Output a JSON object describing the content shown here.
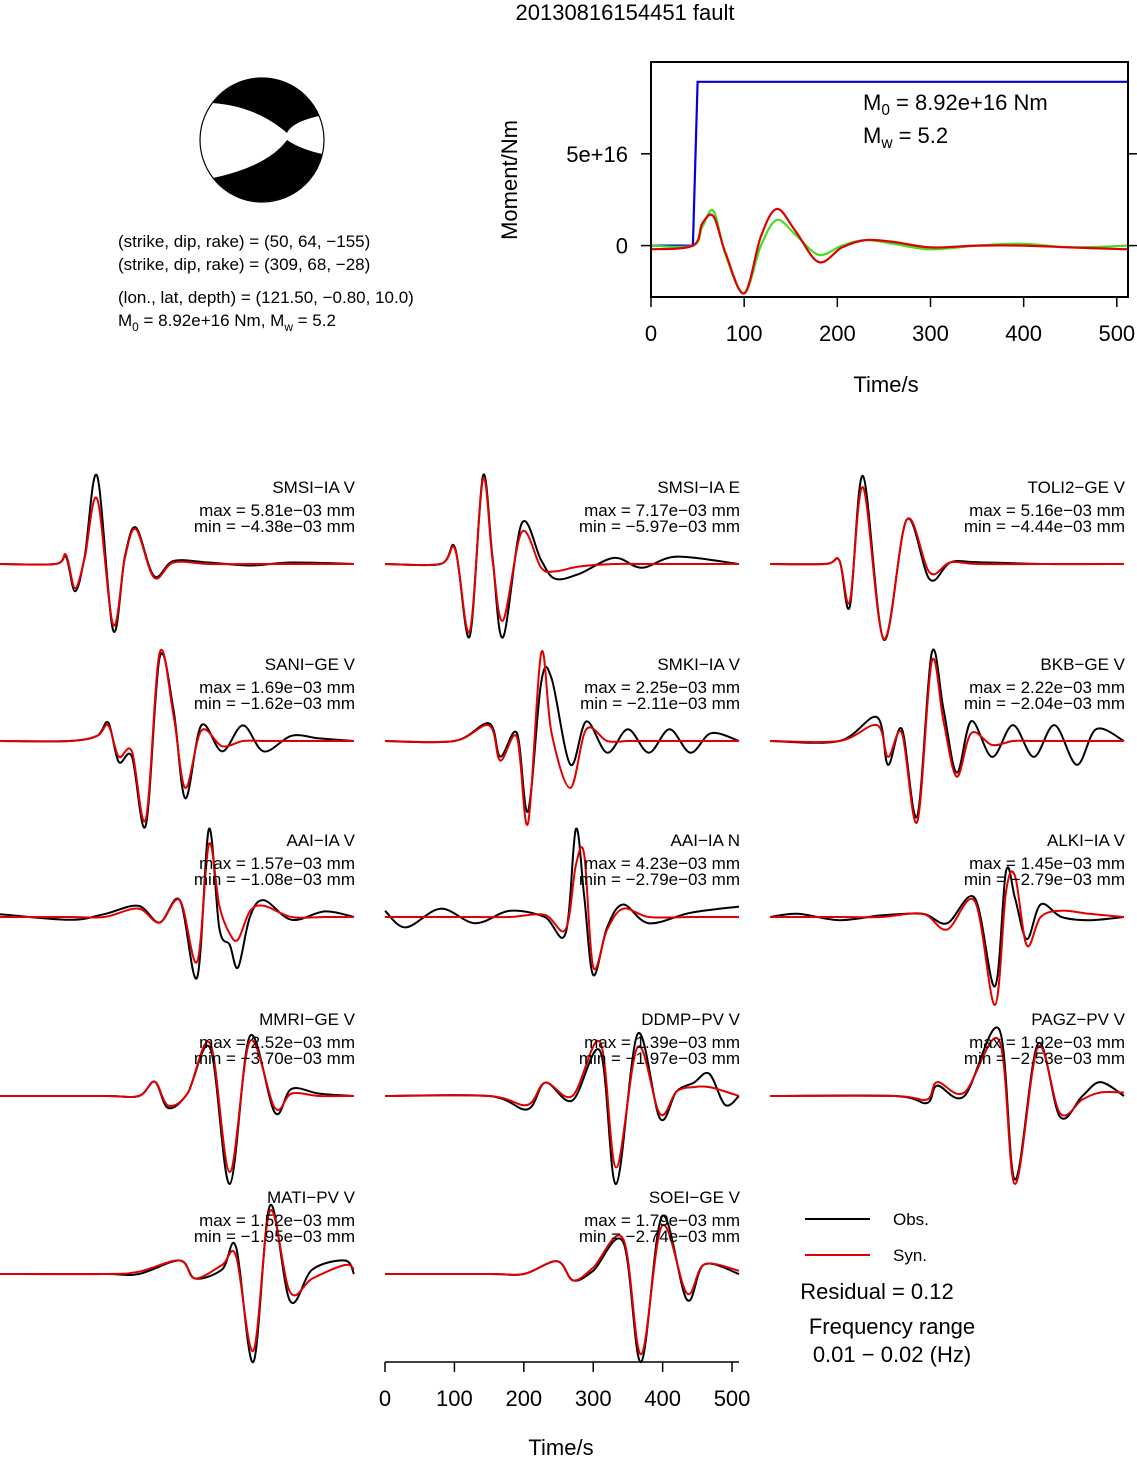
{
  "title": "20130816154451 fault",
  "focal": {
    "lines": [
      "(strike, dip, rake) = (50, 64, −155)",
      "(strike, dip, rake) = (309, 68, −28)",
      "(lon., lat, depth) = (121.50, −0.80, 10.0)"
    ],
    "moment_parts": [
      "M",
      "0",
      " = 8.92e+16 Nm, M",
      "w",
      " = 5.2"
    ]
  },
  "footnotes": [
    "Residual = 0.12",
    "Frequency range",
    "0.01 − 0.02 (Hz)"
  ],
  "chart_data": [
    {
      "type": "line",
      "ylabel": "Moment/Nm",
      "xlabel": "Time/s",
      "annotations": [
        [
          "M",
          "0",
          " = 8.92e+16 Nm"
        ],
        [
          "M",
          "w",
          " = 5.2"
        ]
      ],
      "xlim": [
        0,
        512
      ],
      "xticks": [
        0,
        100,
        200,
        300,
        400,
        500
      ],
      "ylim": [
        -2.8e+16,
        1e+17
      ],
      "yticks": [
        0,
        {
          "value": 5e+16,
          "label": "5e+16"
        }
      ],
      "series": [
        {
          "color": "#0000dd",
          "x": [
            0,
            45,
            50,
            512
          ],
          "values": [
            0,
            0,
            8.92e+16,
            8.92e+16
          ]
        },
        {
          "color": "#44dd22",
          "x": [
            0,
            45,
            55,
            67,
            80,
            100,
            118,
            135,
            155,
            180,
            205,
            230,
            260,
            300,
            350,
            400,
            450,
            512
          ],
          "values": [
            0,
            0,
            1e+16,
            1.9e+16,
            -5000000000000000.0,
            -2.6e+16,
            0,
            1.4e+16,
            6000000000000000.0,
            -5000000000000000.0,
            0,
            3000000000000000.0,
            1000000000000000.0,
            -2000000000000000.0,
            0,
            1000000000000000.0,
            -1000000000000000.0,
            0
          ]
        },
        {
          "color": "#dd0000",
          "x": [
            0,
            45,
            55,
            67,
            80,
            100,
            118,
            135,
            155,
            180,
            205,
            230,
            260,
            300,
            350,
            400,
            450,
            512
          ],
          "values": [
            -2000000000000000.0,
            0,
            1.2e+16,
            1.6e+16,
            -4000000000000000.0,
            -2.6e+16,
            5000000000000000.0,
            2e+16,
            8000000000000000.0,
            -9000000000000000.0,
            -1000000000000000.0,
            3000000000000000.0,
            2000000000000000.0,
            -1000000000000000.0,
            0,
            0,
            -1000000000000000.0,
            -2000000000000000.0
          ]
        }
      ]
    },
    {
      "type": "wave",
      "title": "SMSI−IA V",
      "annotations": [
        "max = 5.81e−03 mm",
        "min = −4.38e−03 mm"
      ],
      "x": [
        0,
        80,
        95,
        108,
        122,
        140,
        163,
        180,
        196,
        222,
        250,
        300,
        360,
        420,
        510
      ],
      "series": [
        {
          "name": "Obs.",
          "color": "#000000",
          "values": [
            0,
            0,
            0.0005,
            -0.0018,
            0.0005,
            0.00581,
            -0.00438,
            0.0005,
            0.0024,
            -0.0008,
            0.0002,
            0.0001,
            -0.0001,
            0.0001,
            0
          ]
        },
        {
          "name": "Syn.",
          "color": "#e00000",
          "values": [
            0,
            0,
            0.0006,
            -0.0016,
            0.0004,
            0.0043,
            -0.004,
            0.0004,
            0.0023,
            -0.0009,
            0.0001,
            0,
            0,
            0,
            0
          ]
        }
      ]
    },
    {
      "type": "wave",
      "title": "SMSI−IA E",
      "annotations": [
        "max = 7.17e−03 mm",
        "min = −5.97e−03 mm"
      ],
      "x": [
        0,
        80,
        101,
        122,
        141,
        155,
        170,
        197,
        225,
        245,
        280,
        330,
        370,
        420,
        510
      ],
      "series": [
        {
          "name": "Obs.",
          "color": "#000000",
          "values": [
            0,
            0,
            0.0013,
            -0.0059,
            0.00717,
            0.0005,
            -0.00597,
            0.0033,
            0.0003,
            -0.0012,
            -0.0008,
            0.0005,
            -0.0003,
            0.0006,
            0
          ]
        },
        {
          "name": "Syn.",
          "color": "#e00000",
          "values": [
            0,
            0,
            0.0012,
            -0.0055,
            0.0069,
            0.0003,
            -0.0046,
            0.0026,
            -0.0003,
            -0.0006,
            -0.0002,
            0,
            0,
            0,
            0
          ]
        }
      ]
    },
    {
      "type": "wave",
      "title": "TOLI2−GE V",
      "annotations": [
        "max = 5.16e−03 mm",
        "min = −4.44e−03 mm"
      ],
      "x": [
        0,
        80,
        100,
        115,
        134,
        164,
        197,
        230,
        260,
        300,
        400,
        510
      ],
      "series": [
        {
          "name": "Obs.",
          "color": "#000000",
          "values": [
            0,
            0,
            0.0002,
            -0.0025,
            0.00516,
            -0.00444,
            0.0026,
            -0.0009,
            0.0001,
            0.0001,
            0,
            0
          ]
        },
        {
          "name": "Syn.",
          "color": "#e00000",
          "values": [
            0,
            0,
            0.0002,
            -0.0022,
            0.0045,
            -0.0044,
            0.0026,
            -0.0005,
            0.0001,
            0,
            0,
            0
          ]
        }
      ]
    },
    {
      "type": "wave",
      "title": "SANI−GE V",
      "annotations": [
        "max = 1.69e−03 mm",
        "min = −1.62e−03 mm"
      ],
      "x": [
        0,
        100,
        140,
        156,
        171,
        190,
        210,
        230,
        250,
        267,
        290,
        320,
        350,
        380,
        420,
        460,
        510
      ],
      "series": [
        {
          "name": "Obs.",
          "color": "#000000",
          "values": [
            0,
            0,
            0.0001,
            0.00035,
            -0.0004,
            -0.0003,
            -0.00162,
            0.0016,
            0.0006,
            -0.0011,
            0.0003,
            -0.0002,
            0.0003,
            -0.0002,
            0.0001,
            5e-05,
            0
          ]
        },
        {
          "name": "Syn.",
          "color": "#e00000",
          "values": [
            0,
            0,
            0.0001,
            0.0003,
            -0.0003,
            -0.0002,
            -0.0015,
            0.00169,
            0.0005,
            -0.0009,
            0.0002,
            -0.0001,
            0,
            0,
            0,
            0,
            0
          ]
        }
      ]
    },
    {
      "type": "wave",
      "title": "SMKI−IA V",
      "annotations": [
        "max = 2.25e−03 mm",
        "min = −2.11e−03 mm"
      ],
      "x": [
        0,
        100,
        150,
        166,
        190,
        206,
        225,
        240,
        267,
        290,
        320,
        350,
        380,
        410,
        440,
        470,
        510
      ],
      "series": [
        {
          "name": "Obs.",
          "color": "#000000",
          "values": [
            0,
            0,
            0.00045,
            -0.0004,
            0.0002,
            -0.0018,
            0.0015,
            0.0016,
            -0.0006,
            0.0005,
            -0.0003,
            0.0003,
            -0.0003,
            0.0003,
            -0.0003,
            0.0002,
            0
          ]
        },
        {
          "name": "Syn.",
          "color": "#e00000",
          "values": [
            0,
            0,
            0.0004,
            -0.0005,
            0.0001,
            -0.00211,
            0.00225,
            0.0002,
            -0.0012,
            0.0003,
            0,
            0,
            0,
            0,
            0,
            0,
            0
          ]
        }
      ]
    },
    {
      "type": "wave",
      "title": "BKB−GE V",
      "annotations": [
        "max = 2.22e−03 mm",
        "min = −2.04e−03 mm"
      ],
      "x": [
        0,
        100,
        154,
        170,
        190,
        212,
        233,
        250,
        269,
        290,
        320,
        350,
        380,
        410,
        442,
        470,
        510
      ],
      "series": [
        {
          "name": "Obs.",
          "color": "#000000",
          "values": [
            0,
            0,
            0.0006,
            -0.0006,
            0.0003,
            -0.0019,
            0.00222,
            0.0008,
            -0.0008,
            0.0005,
            -0.0004,
            0.0004,
            -0.0004,
            0.0004,
            -0.0006,
            0.0003,
            0
          ]
        },
        {
          "name": "Syn.",
          "color": "#e00000",
          "values": [
            0,
            0,
            0.0004,
            -0.0004,
            0.0002,
            -0.00204,
            0.002,
            0.0005,
            -0.0009,
            0.0002,
            -0.0001,
            0,
            0,
            0,
            0,
            0,
            0
          ]
        }
      ]
    },
    {
      "type": "wave",
      "title": "AAI−IA V",
      "annotations": [
        "max = 1.57e−03 mm",
        "min = −1.08e−03 mm"
      ],
      "x": [
        0,
        100,
        150,
        199,
        230,
        259,
        284,
        301,
        316,
        331,
        343,
        360,
        380,
        420,
        468,
        510
      ],
      "series": [
        {
          "name": "Obs.",
          "color": "#000000",
          "values": [
            5e-05,
            -5e-05,
            5e-05,
            0.0002,
            -0.0001,
            0.0003,
            -0.00108,
            0.00157,
            -0.0002,
            -0.0005,
            -0.0009,
            0,
            0.0003,
            -5e-05,
            0.0001,
            0
          ]
        },
        {
          "name": "Syn.",
          "color": "#e00000",
          "values": [
            0,
            0,
            0,
            0.00015,
            -0.0001,
            0.0003,
            -0.0008,
            0.0013,
            0.0002,
            -0.0003,
            -0.0004,
            0.0001,
            0.0002,
            0,
            0,
            0
          ]
        }
      ]
    },
    {
      "type": "wave",
      "title": "AAI−IA N",
      "annotations": [
        "max = 4.23e−03 mm",
        "min = −2.79e−03 mm"
      ],
      "x": [
        0,
        30,
        80,
        130,
        180,
        230,
        260,
        275,
        287,
        300,
        320,
        343,
        380,
        440,
        510
      ],
      "series": [
        {
          "name": "Obs.",
          "color": "#000000",
          "values": [
            0.0003,
            -0.0005,
            0.0004,
            -0.0003,
            0.0003,
            0,
            -0.0008,
            0.00423,
            0.001,
            -0.00279,
            -0.0005,
            0.0006,
            -0.0003,
            0.0002,
            0.0005
          ]
        },
        {
          "name": "Syn.",
          "color": "#e00000",
          "values": [
            0,
            0,
            0,
            0,
            0,
            0.0001,
            -0.0006,
            0.0025,
            0.003,
            -0.0024,
            -0.0006,
            0.0004,
            0,
            0,
            0
          ]
        }
      ]
    },
    {
      "type": "wave",
      "title": "ALKI−IA V",
      "annotations": [
        "max = 1.45e−03 mm",
        "min = −2.79e−03 mm"
      ],
      "x": [
        0,
        40,
        100,
        160,
        220,
        255,
        295,
        324,
        340,
        353,
        370,
        390,
        420,
        460,
        510
      ],
      "series": [
        {
          "name": "Obs.",
          "color": "#000000",
          "values": [
            0,
            0.0001,
            -0.0001,
            5e-05,
            0.0001,
            -0.0002,
            0.0006,
            -0.0022,
            0.00145,
            0.0006,
            -0.0007,
            0.0004,
            0,
            -0.0001,
            0
          ]
        },
        {
          "name": "Syn.",
          "color": "#e00000",
          "values": [
            0,
            0,
            0,
            0,
            0.0001,
            -0.0004,
            0.0005,
            -0.00279,
            0.0008,
            0.0013,
            -0.0009,
            0,
            0.0002,
            0.0001,
            0
          ]
        }
      ]
    },
    {
      "type": "wave",
      "title": "MMRI−GE V",
      "annotations": [
        "max = 2.52e−03 mm",
        "min = −3.70e−03 mm"
      ],
      "x": [
        0,
        150,
        200,
        223,
        242,
        270,
        303,
        331,
        360,
        396,
        420,
        460,
        510
      ],
      "series": [
        {
          "name": "Obs.",
          "color": "#000000",
          "values": [
            0,
            0,
            0,
            0.0006,
            -0.0005,
            0.0001,
            0.002,
            -0.0037,
            0.00252,
            -0.0007,
            0.0003,
            0.0001,
            0
          ]
        },
        {
          "name": "Syn.",
          "color": "#e00000",
          "values": [
            0,
            0,
            0,
            0.0006,
            -0.0004,
            0.0001,
            0.0022,
            -0.0032,
            0.0023,
            -0.0005,
            0.0001,
            0,
            0
          ]
        }
      ]
    },
    {
      "type": "wave",
      "title": "DDMP−PV V",
      "annotations": [
        "max = 1.39e−03 mm",
        "min = −1.97e−03 mm"
      ],
      "x": [
        0,
        150,
        205,
        231,
        270,
        310,
        333,
        364,
        396,
        420,
        445,
        467,
        490,
        510
      ],
      "series": [
        {
          "name": "Obs.",
          "color": "#000000",
          "values": [
            0,
            0,
            -0.0003,
            0.0003,
            -0.0001,
            0.001,
            -0.00197,
            0.00139,
            -0.0005,
            0.0001,
            0.0003,
            0.0005,
            -0.0002,
            0
          ]
        },
        {
          "name": "Syn.",
          "color": "#e00000",
          "values": [
            0,
            0,
            -0.0002,
            0.0003,
            0,
            0.0012,
            -0.0016,
            0.0011,
            -0.0004,
            0.0001,
            0.0002,
            0.0002,
            0.0001,
            0
          ]
        }
      ]
    },
    {
      "type": "wave",
      "title": "PAGZ−PV V",
      "annotations": [
        "max = 1.92e−03 mm",
        "min = −2.53e−03 mm"
      ],
      "x": [
        0,
        180,
        226,
        241,
        280,
        330,
        353,
        386,
        418,
        450,
        476,
        510
      ],
      "series": [
        {
          "name": "Obs.",
          "color": "#000000",
          "values": [
            0,
            0,
            -0.0002,
            0.0003,
            0,
            0.00192,
            -0.0024,
            0.0015,
            -0.0006,
            0,
            0.0004,
            0
          ]
        },
        {
          "name": "Syn.",
          "color": "#e00000",
          "values": [
            0,
            0,
            -0.0001,
            0.0004,
            0.0001,
            0.0016,
            -0.00253,
            0.0014,
            -0.0005,
            -0.0001,
            0.0001,
            0.0001
          ]
        }
      ]
    },
    {
      "type": "wave",
      "title": "MATI−PV V",
      "annotations": [
        "max = 1.52e−03 mm",
        "min = −1.95e−03 mm"
      ],
      "x": [
        0,
        150,
        200,
        259,
        281,
        320,
        340,
        365,
        389,
        418,
        450,
        497,
        510
      ],
      "series": [
        {
          "name": "Obs.",
          "color": "#000000",
          "values": [
            0,
            0,
            0,
            0.0003,
            -0.0001,
            0.0001,
            0.0006,
            -0.00195,
            0.00152,
            -0.0006,
            0.0001,
            0.0003,
            0
          ]
        },
        {
          "name": "Syn.",
          "color": "#e00000",
          "values": [
            0,
            0,
            5e-05,
            0.0003,
            -0.0001,
            0.0002,
            0.0004,
            -0.0017,
            0.0014,
            -0.0004,
            -0.0001,
            0.0002,
            0.0001
          ]
        }
      ]
    },
    {
      "type": "wave",
      "title": "SOEI−GE V",
      "annotations": [
        "max = 1.79e−03 mm",
        "min = −2.74e−03 mm"
      ],
      "xlabel": "Time/s",
      "xlim": [
        0,
        510
      ],
      "xticks": [
        0,
        100,
        200,
        300,
        400,
        500
      ],
      "x": [
        0,
        150,
        200,
        248,
        271,
        300,
        343,
        369,
        399,
        435,
        460,
        510
      ],
      "series": [
        {
          "name": "Obs.",
          "color": "#000000",
          "values": [
            0,
            0,
            0,
            0.0004,
            -0.0002,
            0.0001,
            0.001,
            -0.00274,
            0.00179,
            -0.0008,
            0.0003,
            0
          ]
        },
        {
          "name": "Syn.",
          "color": "#e00000",
          "values": [
            0,
            0,
            0,
            0.0004,
            -0.0002,
            0.0002,
            0.0011,
            -0.0025,
            0.0015,
            -0.0006,
            0.0003,
            0.0001
          ]
        }
      ]
    }
  ]
}
